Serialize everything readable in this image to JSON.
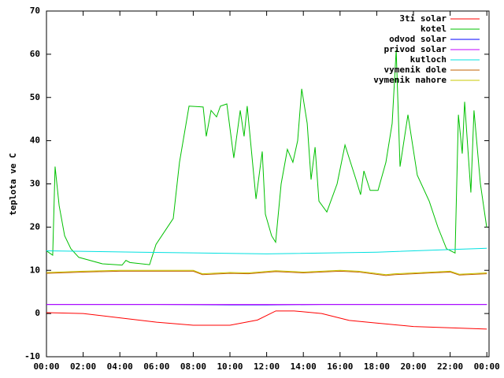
{
  "chart_data": {
    "type": "line",
    "ylabel": "teplota ve C",
    "xlim": [
      0,
      24.12
    ],
    "ylim": [
      -10,
      70
    ],
    "xticks": [
      {
        "value": 0,
        "label": "00:00"
      },
      {
        "value": 2,
        "label": "02:00"
      },
      {
        "value": 4,
        "label": "04:00"
      },
      {
        "value": 6,
        "label": "06:00"
      },
      {
        "value": 8,
        "label": "08:00"
      },
      {
        "value": 10,
        "label": "10:00"
      },
      {
        "value": 12,
        "label": "12:00"
      },
      {
        "value": 14,
        "label": "14:00"
      },
      {
        "value": 16,
        "label": "16:00"
      },
      {
        "value": 18,
        "label": "18:00"
      },
      {
        "value": 20,
        "label": "20:00"
      },
      {
        "value": 22,
        "label": "22:00"
      },
      {
        "value": 24,
        "label": "00:00"
      }
    ],
    "yticks": [
      -10,
      0,
      10,
      20,
      30,
      40,
      50,
      60,
      70
    ],
    "legend": "top-right",
    "series": [
      {
        "name": "3ti solar",
        "color": "#ff0000",
        "x": [
          0,
          2,
          4,
          6,
          8,
          10,
          11.5,
          12.5,
          13.5,
          15,
          16.5,
          18,
          20,
          22,
          24
        ],
        "values": [
          0.2,
          0,
          -1,
          -2,
          -2.7,
          -2.7,
          -1.5,
          0.6,
          0.6,
          0,
          -1.6,
          -2.2,
          -3,
          -3.3,
          -3.6
        ]
      },
      {
        "name": "kotel",
        "color": "#00c000",
        "x": [
          0,
          0.34,
          0.47,
          0.69,
          0.99,
          1.33,
          1.76,
          2.19,
          3.05,
          4.12,
          4.33,
          4.55,
          5.62,
          5.97,
          6.91,
          7.25,
          7.77,
          8.54,
          8.71,
          8.97,
          9.27,
          9.48,
          9.83,
          10.21,
          10.56,
          10.77,
          10.94,
          11.42,
          11.76,
          11.93,
          12.27,
          12.49,
          12.79,
          13.13,
          13.43,
          13.69,
          13.91,
          14.21,
          14.42,
          14.64,
          14.85,
          15.28,
          15.84,
          16.27,
          16.87,
          17.12,
          17.3,
          17.64,
          18.07,
          18.5,
          18.84,
          19.06,
          19.27,
          19.7,
          20.21,
          20.86,
          21.33,
          21.8,
          22.27,
          22.45,
          22.66,
          22.79,
          23.13,
          23.3,
          23.65,
          23.99
        ],
        "values": [
          14.5,
          13.5,
          34,
          25,
          18,
          15,
          13,
          12.5,
          11.5,
          11.2,
          12.3,
          11.8,
          11.3,
          16,
          22,
          35,
          48,
          47.8,
          41,
          47,
          45.5,
          48,
          48.5,
          36,
          47,
          41,
          48,
          26.5,
          37.5,
          23,
          18,
          16.5,
          30,
          38,
          35,
          40,
          52,
          44,
          31,
          38.5,
          26,
          23.5,
          30,
          39,
          31,
          27.5,
          33,
          28.5,
          28.5,
          35,
          44,
          61,
          34,
          46,
          32,
          26,
          20,
          15,
          14,
          46,
          37,
          49,
          28,
          47,
          30,
          20
        ]
      },
      {
        "name": "odvod solar",
        "color": "#0000ff",
        "x": [
          0,
          6,
          10,
          12,
          15,
          24
        ],
        "values": [
          2.1,
          2.1,
          2.0,
          2.0,
          2.1,
          2.1
        ]
      },
      {
        "name": "privod solar",
        "color": "#c000ff",
        "x": [
          0,
          24
        ],
        "values": [
          2.1,
          2.1
        ]
      },
      {
        "name": "kutloch",
        "color": "#00e0e0",
        "x": [
          0,
          5,
          12,
          18,
          24
        ],
        "values": [
          14.5,
          14.2,
          13.8,
          14.2,
          15.1
        ]
      },
      {
        "name": "vymenik dole",
        "color": "#c06000",
        "x": [
          0,
          2,
          4,
          8,
          8.5,
          10,
          11,
          12.5,
          14,
          16,
          17,
          18.5,
          19,
          21,
          22,
          22.5,
          24
        ],
        "values": [
          9.3,
          9.6,
          9.8,
          9.8,
          9.0,
          9.3,
          9.2,
          9.7,
          9.4,
          9.8,
          9.6,
          8.8,
          9.0,
          9.4,
          9.6,
          8.9,
          9.2
        ]
      },
      {
        "name": "vymenik nahore",
        "color": "#c8c800",
        "x": [
          0,
          2,
          4,
          8,
          8.5,
          10,
          11,
          12.5,
          14,
          16,
          17,
          18.5,
          19,
          21,
          22,
          22.5,
          24
        ],
        "values": [
          9.5,
          9.8,
          10.0,
          10.0,
          9.2,
          9.5,
          9.4,
          9.9,
          9.6,
          10.0,
          9.8,
          9.0,
          9.2,
          9.6,
          9.8,
          9.1,
          9.4
        ]
      }
    ]
  }
}
